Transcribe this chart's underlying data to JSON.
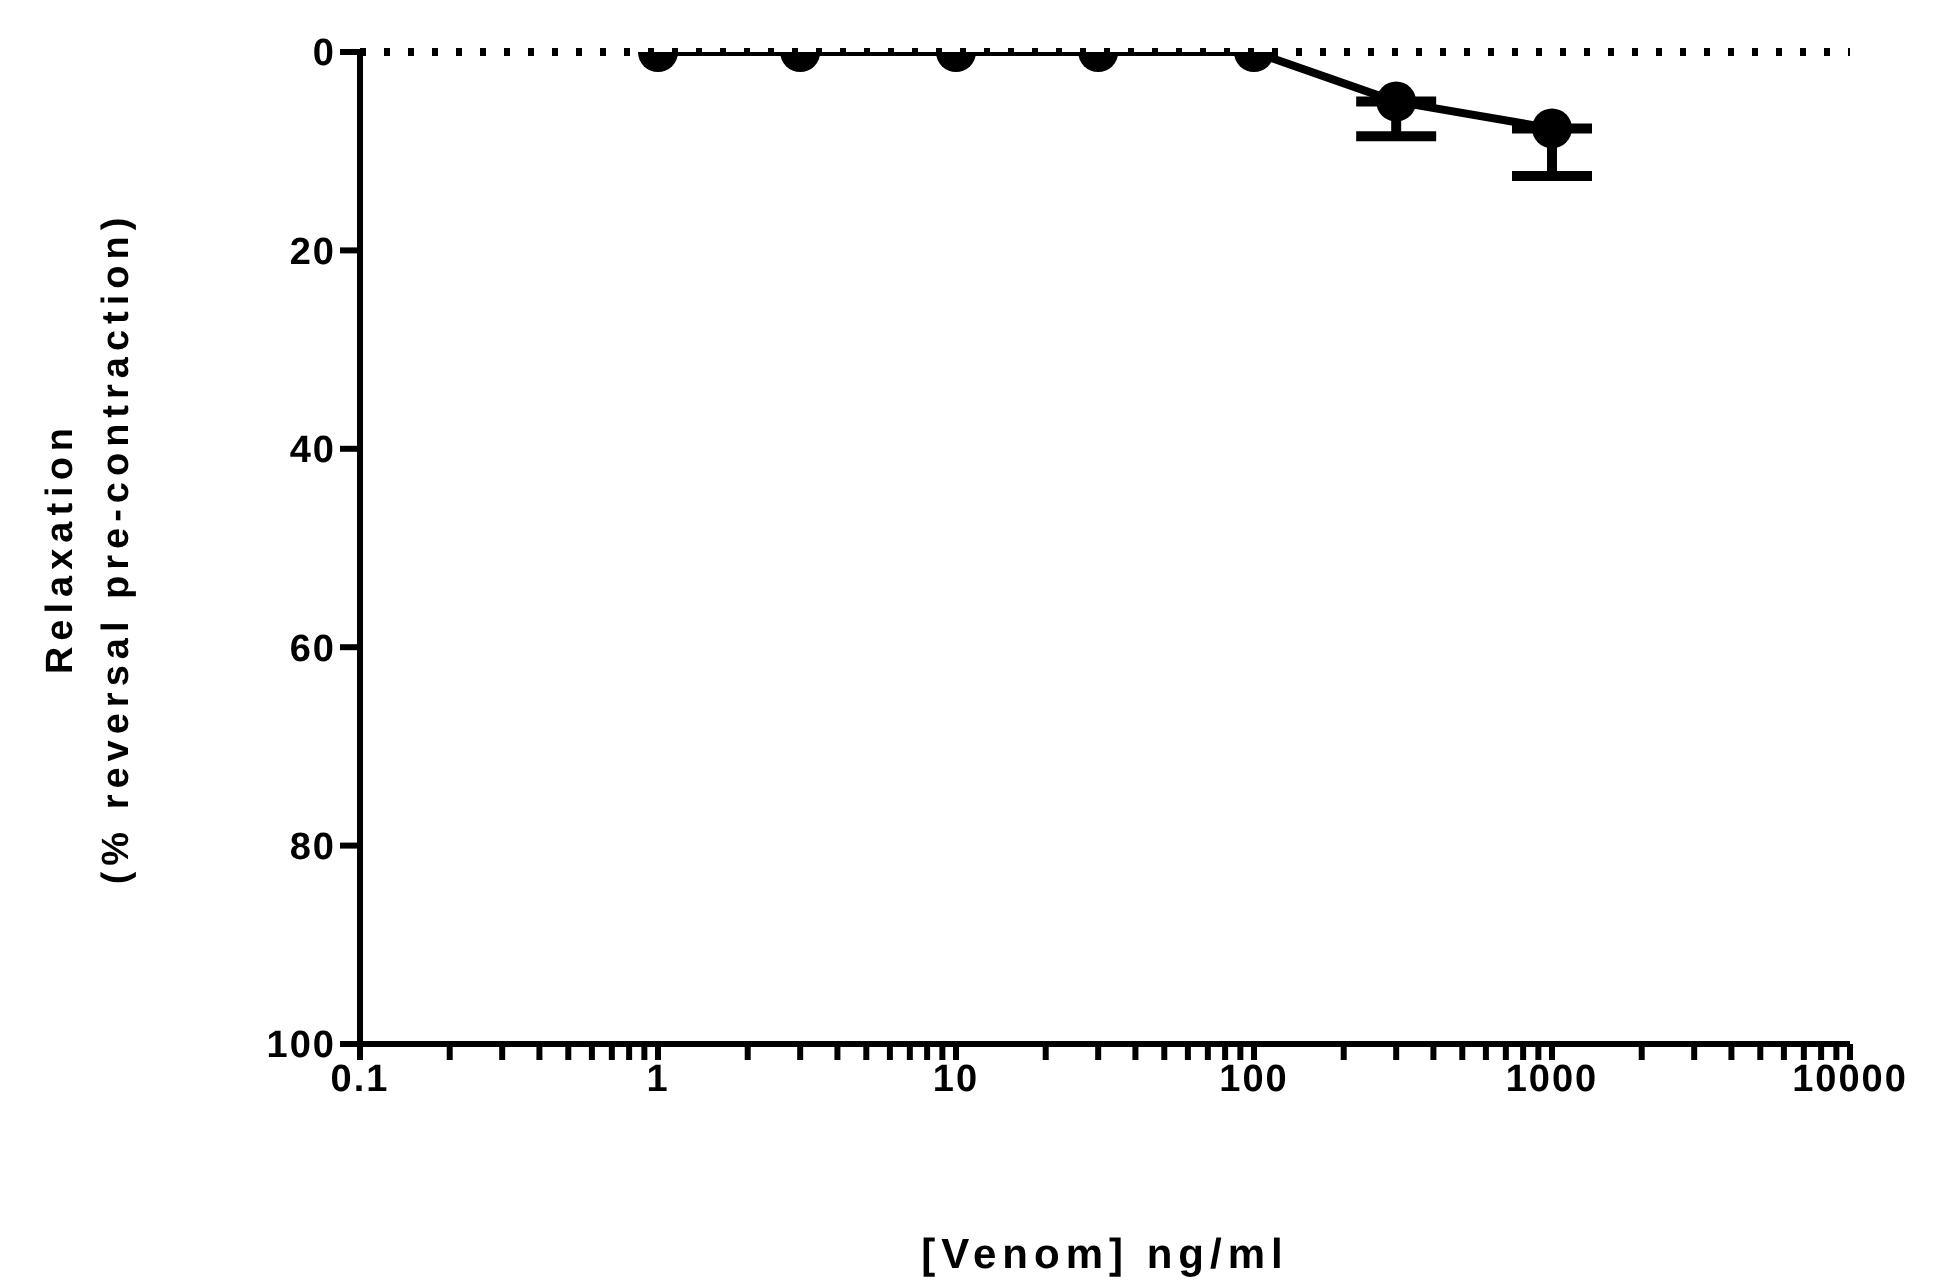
{
  "chart_data": {
    "type": "line",
    "xlabel": "[Venom] ng/ml",
    "ylabel": "Relaxation\n(% reversal pre-contraction)",
    "x": [
      1,
      3,
      10,
      30,
      100,
      300,
      1000
    ],
    "series": [
      {
        "color": "#000000",
        "values": [
          0,
          0,
          0,
          0,
          0,
          5,
          7.7
        ],
        "errors": [
          null,
          null,
          null,
          null,
          null,
          [
            5,
            8.5
          ],
          [
            7.7,
            12.5
          ]
        ]
      }
    ],
    "log": "x",
    "xlim": [
      0.1,
      10000
    ],
    "xticks": [
      0.1,
      {
        "value": 0.2,
        "label": null
      },
      {
        "value": 0.3,
        "label": null
      },
      {
        "value": 0.4,
        "label": null
      },
      {
        "value": 0.5,
        "label": null
      },
      {
        "value": 0.6,
        "label": null
      },
      {
        "value": 0.7,
        "label": null
      },
      {
        "value": 0.8,
        "label": null
      },
      {
        "value": 0.9,
        "label": null
      },
      1,
      {
        "value": 2,
        "label": null
      },
      {
        "value": 3,
        "label": null
      },
      {
        "value": 4,
        "label": null
      },
      {
        "value": 5,
        "label": null
      },
      {
        "value": 6,
        "label": null
      },
      {
        "value": 7,
        "label": null
      },
      {
        "value": 8,
        "label": null
      },
      {
        "value": 9,
        "label": null
      },
      10,
      {
        "value": 20,
        "label": null
      },
      {
        "value": 30,
        "label": null
      },
      {
        "value": 40,
        "label": null
      },
      {
        "value": 50,
        "label": null
      },
      {
        "value": 60,
        "label": null
      },
      {
        "value": 70,
        "label": null
      },
      {
        "value": 80,
        "label": null
      },
      {
        "value": 90,
        "label": null
      },
      100,
      {
        "value": 200,
        "label": null
      },
      {
        "value": 300,
        "label": null
      },
      {
        "value": 400,
        "label": null
      },
      {
        "value": 500,
        "label": null
      },
      {
        "value": 600,
        "label": null
      },
      {
        "value": 700,
        "label": null
      },
      {
        "value": 800,
        "label": null
      },
      {
        "value": 900,
        "label": null
      },
      1000,
      {
        "value": 2000,
        "label": null
      },
      {
        "value": 3000,
        "label": null
      },
      {
        "value": 4000,
        "label": null
      },
      {
        "value": 5000,
        "label": null
      },
      {
        "value": 6000,
        "label": null
      },
      {
        "value": 7000,
        "label": null
      },
      {
        "value": 8000,
        "label": null
      },
      {
        "value": 9000,
        "label": null
      },
      10000
    ],
    "ylim": [
      100,
      0
    ],
    "yticks": [
      0,
      20,
      40,
      60,
      80,
      100
    ],
    "ref_lines": [
      {
        "axis": "y",
        "value": 0,
        "color": "#000000",
        "line_style": "dotted"
      }
    ],
    "marker": "circle",
    "line_style": "solid",
    "grid": false,
    "legend": false
  }
}
